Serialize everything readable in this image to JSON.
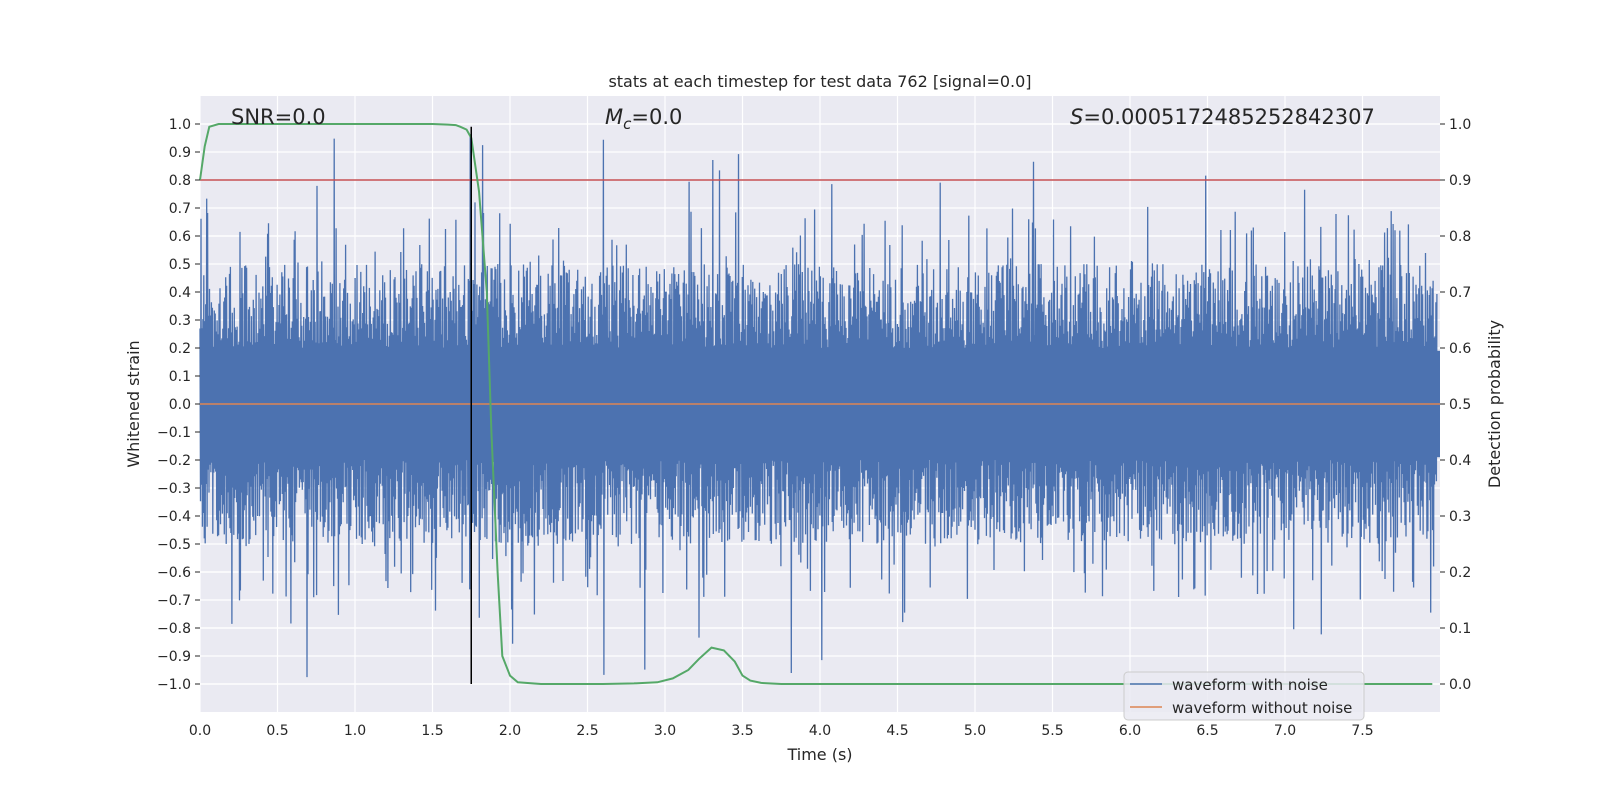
{
  "chart_data": {
    "type": "line",
    "title": "stats at each timestep for test data 762 [signal=0.0]",
    "xlabel": "Time (s)",
    "ylabel": "Whitened strain",
    "y2label": "Detection probability",
    "xlim": [
      0.0,
      8.0
    ],
    "ylim": [
      -1.1,
      1.1
    ],
    "y2lim": [
      -0.05,
      1.05
    ],
    "xticks": [
      "0.0",
      "0.5",
      "1.0",
      "1.5",
      "2.0",
      "2.5",
      "3.0",
      "3.5",
      "4.0",
      "4.5",
      "5.0",
      "5.5",
      "6.0",
      "6.5",
      "7.0",
      "7.5"
    ],
    "yticks": [
      "1.0",
      "0.9",
      "0.8",
      "0.7",
      "0.6",
      "0.5",
      "0.4",
      "0.3",
      "0.2",
      "0.1",
      "0.0",
      "−0.1",
      "−0.2",
      "−0.3",
      "−0.4",
      "−0.5",
      "−0.6",
      "−0.7",
      "−0.8",
      "−0.9",
      "−1.0"
    ],
    "y2ticks": [
      "1.0",
      "0.9",
      "0.8",
      "0.7",
      "0.6",
      "0.5",
      "0.4",
      "0.3",
      "0.2",
      "0.1",
      "0.0"
    ],
    "grid": true,
    "annotations": {
      "snr": "SNR=0.0",
      "mc_symbol": "M",
      "mc_sub": "c",
      "mc_value": "=0.0",
      "s_symbol": "S",
      "s_value": "=0.0005172485252842307"
    },
    "legend": {
      "placement": "lower right",
      "entries": [
        "waveform with noise",
        "waveform without noise"
      ]
    },
    "threshold": 0.9,
    "marker_time": 1.75,
    "series": [
      {
        "name": "waveform with noise",
        "color": "#4c72b0",
        "style": "dense noise",
        "range": [
          -0.98,
          0.99
        ]
      },
      {
        "name": "waveform without noise",
        "color": "#dd8452",
        "values": "flat at 0.0"
      },
      {
        "name": "detection probability",
        "color": "#55a868",
        "x": [
          0.0,
          0.03,
          0.06,
          0.12,
          0.2,
          0.5,
          1.0,
          1.5,
          1.6,
          1.65,
          1.68,
          1.72,
          1.75,
          1.8,
          1.85,
          1.88,
          1.92,
          1.95,
          2.0,
          2.05,
          2.2,
          2.6,
          2.8,
          2.95,
          3.05,
          3.15,
          3.22,
          3.3,
          3.38,
          3.45,
          3.5,
          3.55,
          3.62,
          3.75,
          4.5,
          6.0,
          7.5,
          7.95
        ],
        "y": [
          0.9,
          0.96,
          0.995,
          1.0,
          1.0,
          1.0,
          1.0,
          1.0,
          0.999,
          0.998,
          0.995,
          0.99,
          0.975,
          0.88,
          0.7,
          0.45,
          0.2,
          0.05,
          0.015,
          0.003,
          0.0,
          0.0,
          0.001,
          0.003,
          0.01,
          0.025,
          0.045,
          0.065,
          0.06,
          0.04,
          0.015,
          0.006,
          0.002,
          0.0,
          0.0,
          0.0,
          0.0,
          0.0
        ]
      }
    ],
    "colors": {
      "background": "#eaeaf2",
      "grid": "#ffffff",
      "threshold": "#c44e52",
      "marker": "#000000"
    }
  }
}
